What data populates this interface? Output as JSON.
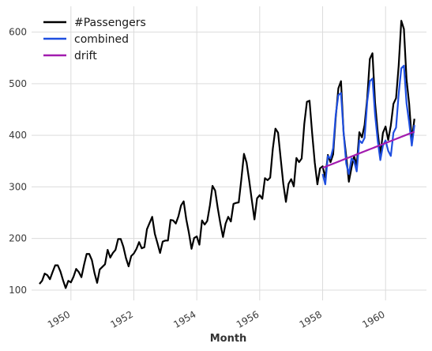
{
  "chart_data": {
    "type": "line",
    "title": "",
    "xlabel": "Month",
    "ylabel": "",
    "xlim": [
      1948.75,
      1961.3
    ],
    "ylim": [
      80,
      650
    ],
    "yticks": [
      100,
      200,
      300,
      400,
      500,
      600
    ],
    "xticks": [
      1950,
      1952,
      1954,
      1956,
      1958,
      1960
    ],
    "grid": true,
    "legend_position": "top-left",
    "series": [
      {
        "name": "#Passengers",
        "color": "#000000",
        "x_start": 1949.0,
        "x_step": 0.0833333,
        "values": [
          112,
          118,
          132,
          129,
          121,
          135,
          148,
          148,
          136,
          119,
          104,
          118,
          115,
          126,
          141,
          135,
          125,
          149,
          170,
          170,
          158,
          133,
          114,
          140,
          145,
          150,
          178,
          163,
          172,
          178,
          199,
          199,
          184,
          162,
          146,
          166,
          171,
          180,
          193,
          181,
          183,
          218,
          230,
          242,
          209,
          191,
          172,
          194,
          196,
          196,
          236,
          235,
          229,
          243,
          264,
          272,
          237,
          211,
          180,
          201,
          204,
          188,
          235,
          227,
          234,
          264,
          302,
          293,
          259,
          229,
          203,
          229,
          242,
          233,
          267,
          269,
          270,
          315,
          364,
          347,
          312,
          274,
          237,
          278,
          284,
          277,
          317,
          313,
          318,
          374,
          413,
          405,
          355,
          306,
          271,
          306,
          315,
          301,
          356,
          348,
          355,
          422,
          465,
          467,
          404,
          347,
          305,
          336,
          340,
          318,
          362,
          348,
          363,
          435,
          491,
          505,
          404,
          359,
          310,
          337,
          360,
          342,
          406,
          396,
          420,
          472,
          548,
          559,
          463,
          407,
          362,
          405,
          417,
          391,
          419,
          461,
          472,
          535,
          622,
          606,
          508,
          461,
          390,
          432
        ]
      },
      {
        "name": "combined",
        "color": "#1f4fe0",
        "x_start": 1958.0,
        "x_step": 0.0833333,
        "values": [
          325,
          305,
          360,
          355,
          375,
          440,
          478,
          482,
          405,
          345,
          325,
          355,
          350,
          330,
          390,
          385,
          395,
          465,
          505,
          510,
          440,
          390,
          352,
          380,
          390,
          370,
          360,
          405,
          415,
          480,
          530,
          535,
          462,
          425,
          380,
          420
        ]
      },
      {
        "name": "drift",
        "color": "#a21caf",
        "x_start": 1958.0,
        "x_step": 0.0833333,
        "values": [
          337,
          339,
          341,
          343,
          345,
          347,
          349,
          351,
          353,
          355,
          357,
          359,
          361,
          363,
          365,
          367,
          369,
          371,
          373,
          375,
          377,
          379,
          381,
          383,
          385,
          387,
          389,
          391,
          393,
          395,
          397,
          399,
          401,
          403,
          405,
          407
        ]
      }
    ]
  }
}
